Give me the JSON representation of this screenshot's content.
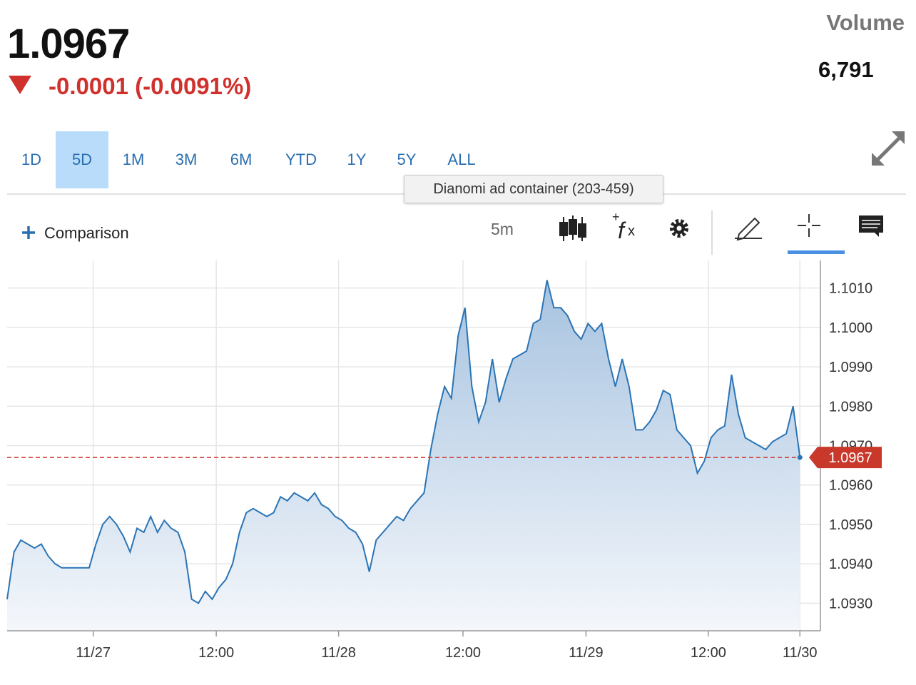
{
  "header": {
    "price": "1.0967",
    "change": "-0.0001 (-0.0091%)",
    "volume_label": "Volume",
    "volume": "6,791"
  },
  "ranges": [
    "1D",
    "5D",
    "1M",
    "3M",
    "6M",
    "YTD",
    "1Y",
    "5Y",
    "ALL"
  ],
  "active_range": 1,
  "tooltip": "Dianomi ad container (203-459)",
  "toolbar": {
    "comparison": "Comparison",
    "interval": "5m"
  },
  "chart_data": {
    "type": "area",
    "color": "#2a74b5",
    "reference_color": "#c8392b",
    "values": [
      1.0931,
      1.0943,
      1.0946,
      1.0945,
      1.0944,
      1.0945,
      1.0942,
      1.094,
      1.0939,
      1.0939,
      1.0939,
      1.0939,
      1.0939,
      1.0945,
      1.095,
      1.0952,
      1.095,
      1.0947,
      1.0943,
      1.0949,
      1.0948,
      1.0952,
      1.0948,
      1.0951,
      1.0949,
      1.0948,
      1.0943,
      1.0931,
      1.093,
      1.0933,
      1.0931,
      1.0934,
      1.0936,
      1.094,
      1.0948,
      1.0953,
      1.0954,
      1.0953,
      1.0952,
      1.0953,
      1.0957,
      1.0956,
      1.0958,
      1.0957,
      1.0956,
      1.0958,
      1.0955,
      1.0954,
      1.0952,
      1.0951,
      1.0949,
      1.0948,
      1.0945,
      1.0938,
      1.0946,
      1.0948,
      1.095,
      1.0952,
      1.0951,
      1.0954,
      1.0956,
      1.0958,
      1.0969,
      1.0978,
      1.0985,
      1.0982,
      1.0998,
      1.1005,
      1.0985,
      1.0976,
      1.0981,
      1.0992,
      1.0981,
      1.0987,
      1.0992,
      1.0993,
      1.0994,
      1.1001,
      1.1002,
      1.1012,
      1.1005,
      1.1005,
      1.1003,
      1.0999,
      1.0997,
      1.1001,
      1.0999,
      1.1001,
      1.0992,
      1.0985,
      1.0992,
      1.0985,
      1.0974,
      1.0974,
      1.0976,
      1.0979,
      1.0984,
      1.0983,
      1.0974,
      1.0972,
      1.097,
      1.0963,
      1.0966,
      1.0972,
      1.0974,
      1.0975,
      1.0988,
      1.0978,
      1.0972,
      1.0971,
      1.097,
      1.0969,
      1.0971,
      1.0972,
      1.0973,
      1.098,
      1.0967
    ],
    "xlim": [
      0,
      119
    ],
    "xticks": [
      {
        "value": 12.6,
        "label": "11/27"
      },
      {
        "value": 30.6,
        "label": "12:00"
      },
      {
        "value": 48.5,
        "label": "11/28"
      },
      {
        "value": 66.7,
        "label": "12:00"
      },
      {
        "value": 84.7,
        "label": "11/29"
      },
      {
        "value": 102.6,
        "label": "12:00"
      },
      {
        "value": 116,
        "label": "11/30"
      }
    ],
    "ylim": [
      1.0923,
      1.1017
    ],
    "yticks": [
      {
        "value": 1.093,
        "label": "1.0930"
      },
      {
        "value": 1.094,
        "label": "1.0940"
      },
      {
        "value": 1.095,
        "label": "1.0950"
      },
      {
        "value": 1.096,
        "label": "1.0960"
      },
      {
        "value": 1.097,
        "label": "1.0970"
      },
      {
        "value": 1.098,
        "label": "1.0980"
      },
      {
        "value": 1.099,
        "label": "1.0990"
      },
      {
        "value": 1.1,
        "label": "1.1000"
      },
      {
        "value": 1.101,
        "label": "1.1010"
      }
    ],
    "grid": true
  }
}
